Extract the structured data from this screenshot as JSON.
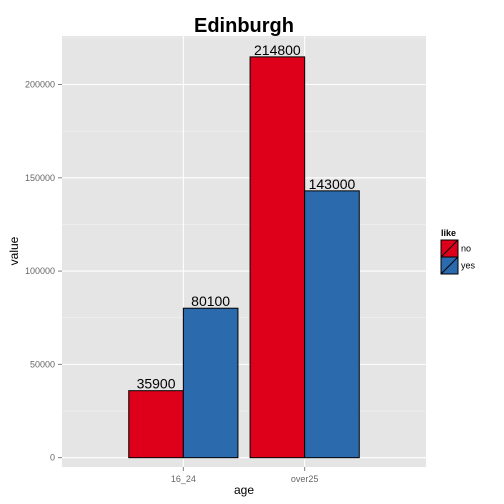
{
  "chart_data": {
    "type": "bar",
    "title": "Edinburgh",
    "xlabel": "age",
    "ylabel": "value",
    "categories": [
      "16_24",
      "over25"
    ],
    "series": [
      {
        "name": "no",
        "values": [
          35900,
          214800
        ],
        "color": "#DE001A"
      },
      {
        "name": "yes",
        "values": [
          80100,
          143000
        ],
        "color": "#2B6AAD"
      }
    ],
    "ylim": [
      -5000,
      226000
    ],
    "yticks": [
      0,
      50000,
      100000,
      150000,
      200000
    ],
    "ytick_labels": [
      "0",
      "50000",
      "100000",
      "150000",
      "200000"
    ],
    "legend_title": "like",
    "legend_position": "right",
    "grid": true,
    "panel_color": "#E5E5E5",
    "grid_color": "#FFFFFF",
    "bar_outline_color": "#000000"
  }
}
